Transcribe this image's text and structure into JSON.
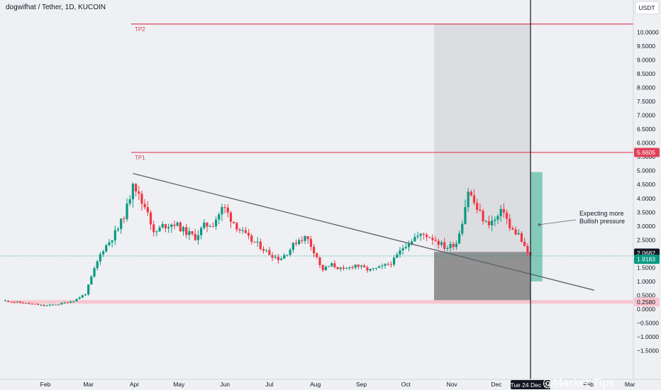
{
  "header": {
    "title": "dogwifhat / Tether, 1D, KUCOIN"
  },
  "currency_button": "USDT",
  "chart_data": {
    "type": "candlestick",
    "symbol": "dogwifhat / Tether",
    "exchange": "KUCOIN",
    "interval": "1D",
    "y_ticks": [
      "10.0000",
      "9.5000",
      "9.0000",
      "8.5000",
      "8.0000",
      "7.5000",
      "7.0000",
      "6.5000",
      "6.0000",
      "5.5000",
      "5.0000",
      "4.5000",
      "4.0000",
      "3.5000",
      "3.0000",
      "2.5000",
      "1.5000",
      "1.0000",
      "0.5000",
      "0.0000",
      "−0.5000",
      "−1.0000",
      "−1.5000"
    ],
    "x_months": [
      "Feb",
      "Mar",
      "Apr",
      "May",
      "Jun",
      "Jul",
      "Aug",
      "Sep",
      "Oct",
      "Nov",
      "Dec",
      "Feb",
      "Mar"
    ],
    "ylim": [
      -1.9,
      10.4
    ],
    "price_labels": {
      "tp1": "5.6605",
      "current_high": "2.0682",
      "current_low": "1.9183",
      "support": "0.2580"
    },
    "levels": [
      {
        "label": "TP2",
        "value": 10.3
      },
      {
        "label": "TP1",
        "value": 5.6605
      },
      {
        "label": "",
        "value": 0.258
      }
    ],
    "crosshair_label": "Tue 24 Dec '24",
    "trendline": {
      "from": [
        "2024-03-31",
        4.9
      ],
      "to": [
        "2025-02-05",
        0.68
      ]
    },
    "closes": [
      [
        "2024-01-05",
        0.3
      ],
      [
        "2024-01-20",
        0.2
      ],
      [
        "2024-02-01",
        0.12
      ],
      [
        "2024-02-10",
        0.18
      ],
      [
        "2024-02-20",
        0.3
      ],
      [
        "2024-02-28",
        0.55
      ],
      [
        "2024-03-04",
        1.3
      ],
      [
        "2024-03-10",
        2.1
      ],
      [
        "2024-03-16",
        2.5
      ],
      [
        "2024-03-22",
        3.0
      ],
      [
        "2024-03-28",
        3.8
      ],
      [
        "2024-03-31",
        4.7
      ],
      [
        "2024-04-05",
        3.9
      ],
      [
        "2024-04-10",
        3.6
      ],
      [
        "2024-04-14",
        2.7
      ],
      [
        "2024-04-20",
        3.0
      ],
      [
        "2024-04-28",
        3.1
      ],
      [
        "2024-05-05",
        2.8
      ],
      [
        "2024-05-12",
        2.6
      ],
      [
        "2024-05-18",
        3.0
      ],
      [
        "2024-05-24",
        3.1
      ],
      [
        "2024-05-31",
        3.7
      ],
      [
        "2024-06-06",
        3.2
      ],
      [
        "2024-06-12",
        2.8
      ],
      [
        "2024-06-18",
        2.5
      ],
      [
        "2024-06-24",
        2.3
      ],
      [
        "2024-07-01",
        2.0
      ],
      [
        "2024-07-08",
        1.8
      ],
      [
        "2024-07-14",
        2.1
      ],
      [
        "2024-07-20",
        2.5
      ],
      [
        "2024-07-26",
        2.6
      ],
      [
        "2024-08-02",
        1.9
      ],
      [
        "2024-08-05",
        1.4
      ],
      [
        "2024-08-12",
        1.6
      ],
      [
        "2024-08-20",
        1.4
      ],
      [
        "2024-08-28",
        1.6
      ],
      [
        "2024-09-06",
        1.4
      ],
      [
        "2024-09-14",
        1.5
      ],
      [
        "2024-09-22",
        1.7
      ],
      [
        "2024-09-30",
        2.3
      ],
      [
        "2024-10-07",
        2.6
      ],
      [
        "2024-10-14",
        2.7
      ],
      [
        "2024-10-21",
        2.5
      ],
      [
        "2024-10-28",
        2.2
      ],
      [
        "2024-11-04",
        2.4
      ],
      [
        "2024-11-08",
        3.2
      ],
      [
        "2024-11-12",
        4.3
      ],
      [
        "2024-11-18",
        3.6
      ],
      [
        "2024-11-24",
        3.1
      ],
      [
        "2024-11-30",
        3.2
      ],
      [
        "2024-12-06",
        3.6
      ],
      [
        "2024-12-10",
        2.9
      ],
      [
        "2024-12-16",
        2.7
      ],
      [
        "2024-12-20",
        2.2
      ],
      [
        "2024-12-24",
        1.92
      ]
    ],
    "zones": [
      {
        "kind": "stop",
        "from": "2024-10-20",
        "to": "2024-12-24",
        "top": 2.0682,
        "bottom": 0.258
      },
      {
        "kind": "target",
        "from": "2024-10-20",
        "to": "2024-12-24",
        "top": 10.3,
        "bottom": 2.0682
      },
      {
        "kind": "profit",
        "from": "2024-12-24",
        "to": "2025-01-01",
        "top": 4.95,
        "bottom": 1.0
      }
    ],
    "annotation": {
      "text_lines": [
        "Expecting more",
        "Bullish pressure"
      ],
      "target_date": "2024-12-30",
      "target_value": 3.05
    }
  },
  "watermark": "@Market Tips",
  "colors": {
    "up": "#089981",
    "down": "#f23645",
    "tp": "#e0405a",
    "support": "#f7c6cf",
    "stop_zone": "#808080",
    "profit_zone": "#5fbfa4",
    "target_zone": "#d8d9dc"
  }
}
